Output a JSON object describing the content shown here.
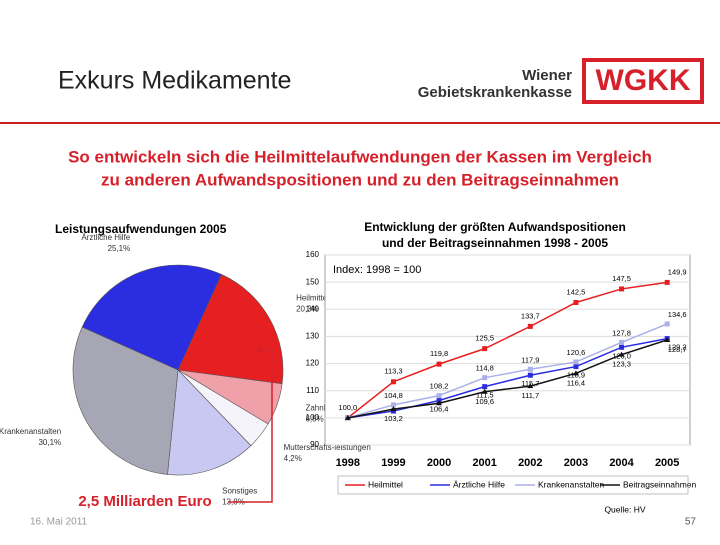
{
  "header": {
    "title": "Exkurs Medikamente",
    "logo_line1": "Wiener",
    "logo_line2": "Gebietskrankenkasse",
    "logo": "WGKK"
  },
  "headline": [
    "So entwickeln sich die Heilmittelaufwendungen der Kassen im Vergleich",
    "zu anderen Aufwandspositionen und zu den Beitragseinnahmen"
  ],
  "chart_data": [
    {
      "type": "pie",
      "title": "Leistungsaufwendungen 2005",
      "categories": [
        "Ärztliche Hilfe",
        "Heilmittel",
        "Zahnbehandlung, Zahnersatz",
        "Mutterschafts-leistungen",
        "Sonstiges",
        "Krankenanstalten"
      ],
      "values": [
        25.1,
        20.3,
        6.5,
        4.2,
        13.8,
        30.1
      ],
      "value_labels": [
        "25,1%",
        "20,3%",
        "6,5%",
        "4,2%",
        "13,8%",
        "30,1%"
      ],
      "colors": [
        "#2a2ee0",
        "#e62020",
        "#f0a0a8",
        "#f4f4fa",
        "#c8c8f2",
        "#a6a6b4"
      ],
      "annotation": "2,5 Milliarden Euro"
    },
    {
      "type": "line",
      "title": "Entwicklung der größten Aufwandspositionen",
      "subtitle": "und der Beitragseinnahmen 1998 - 2005",
      "note": "Index: 1998 = 100",
      "categories": [
        "1998",
        "1999",
        "2000",
        "2001",
        "2002",
        "2003",
        "2004",
        "2005"
      ],
      "ylim": [
        90,
        160
      ],
      "yticks": [
        90,
        100,
        110,
        120,
        130,
        140,
        150,
        160
      ],
      "series": [
        {
          "name": "Heilmittel",
          "color": "#e62020",
          "values": [
            100,
            113.3,
            119.8,
            125.5,
            133.7,
            142.5,
            147.5,
            149.9
          ],
          "value_labels": [
            "100,0",
            "113,3",
            "119,8",
            "125,5",
            "133,7",
            "142,5",
            "147,5",
            "149,9"
          ]
        },
        {
          "name": "Ärztliche Hilfe",
          "color": "#2a2ee0",
          "values": [
            100,
            102.5,
            106.4,
            111.5,
            115.7,
            118.9,
            126.0,
            129.2
          ],
          "value_labels": [
            null,
            null,
            "106,4",
            "111,5",
            "115,7",
            "118,9",
            "126,0",
            "129,2"
          ]
        },
        {
          "name": "Krankenanstalten",
          "color": "#aab0e8",
          "values": [
            100,
            104.8,
            108.2,
            114.8,
            117.9,
            120.6,
            127.8,
            134.6
          ],
          "value_labels": [
            null,
            "104,8",
            "108,2",
            "114,8",
            "117,9",
            "120,6",
            "127,8",
            "134,6"
          ]
        },
        {
          "name": "Beitragseinnahmen",
          "color": "#111111",
          "values": [
            100,
            103.2,
            105.4,
            109.6,
            111.7,
            116.4,
            123.3,
            128.7
          ],
          "value_labels": [
            null,
            "103,2",
            null,
            "109,6",
            "111,7",
            "116,4",
            "123,3",
            "128,7"
          ]
        }
      ],
      "source": "Quelle: HV"
    }
  ],
  "footer": {
    "date": "16. Mai 2011",
    "page": "57"
  }
}
